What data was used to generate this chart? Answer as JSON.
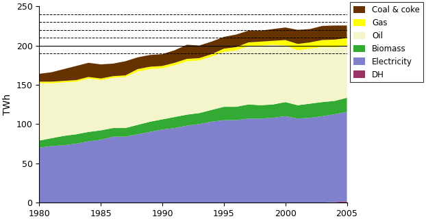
{
  "years": [
    1980,
    1981,
    1982,
    1983,
    1984,
    1985,
    1986,
    1987,
    1988,
    1989,
    1990,
    1991,
    1992,
    1993,
    1994,
    1995,
    1996,
    1997,
    1998,
    1999,
    2000,
    2001,
    2002,
    2003,
    2004,
    2005
  ],
  "electricity": [
    70,
    72,
    73,
    75,
    78,
    80,
    84,
    84,
    87,
    90,
    93,
    95,
    98,
    100,
    103,
    105,
    105,
    107,
    107,
    108,
    110,
    107,
    108,
    110,
    112,
    114
  ],
  "dh": [
    0,
    0,
    0,
    0,
    0,
    0,
    0,
    0,
    0,
    0,
    0,
    0,
    0,
    0,
    0,
    0,
    0,
    0,
    0,
    0,
    0,
    0,
    0,
    0,
    0.5,
    1.5
  ],
  "biomass": [
    9,
    10,
    12,
    12,
    12,
    12,
    11,
    11,
    12,
    13,
    13,
    14,
    14,
    14,
    15,
    17,
    17,
    18,
    17,
    17,
    18,
    17,
    18,
    18,
    17,
    18
  ],
  "oil": [
    73,
    70,
    68,
    67,
    68,
    64,
    64,
    65,
    68,
    67,
    65,
    66,
    68,
    67,
    68,
    70,
    72,
    74,
    76,
    76,
    72,
    70,
    70,
    70,
    68,
    66
  ],
  "gas": [
    2,
    2,
    2,
    2,
    2,
    2,
    2,
    2,
    3,
    3,
    3,
    3,
    3,
    3,
    3,
    4,
    4,
    5,
    5,
    5,
    7,
    8,
    8,
    9,
    10,
    10
  ],
  "coal_coke": [
    10,
    12,
    15,
    18,
    18,
    18,
    16,
    18,
    15,
    15,
    15,
    16,
    18,
    16,
    16,
    15,
    16,
    15,
    14,
    15,
    16,
    18,
    17,
    18,
    18,
    16
  ],
  "colors": {
    "electricity": "#8080cc",
    "dh": "#993366",
    "biomass": "#33aa33",
    "oil": "#f5f5cc",
    "gas": "#ffff00",
    "coal_coke": "#663300"
  },
  "ylabel": "TWh",
  "ylim": [
    0,
    250
  ],
  "yticks": [
    0,
    50,
    100,
    150,
    200,
    250
  ],
  "xticks": [
    1980,
    1985,
    1990,
    1995,
    2000,
    2005
  ],
  "solid_gridlines": [
    200
  ],
  "dashed_gridlines": [
    190,
    210,
    220,
    230,
    240
  ]
}
